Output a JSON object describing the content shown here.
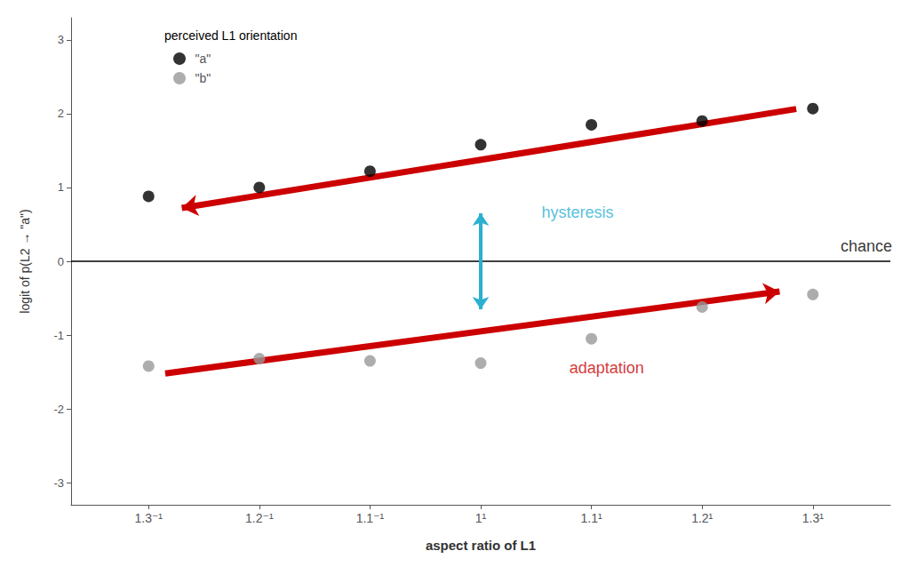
{
  "chart_data": {
    "type": "scatter",
    "title": "perceived L1 orientation",
    "xlabel": "aspect ratio of L1",
    "ylabel": "logit of p(L2 → \"a\")",
    "xlim": [
      -3.7,
      3.7
    ],
    "xticks": [
      {
        "value": -3,
        "label": "1.3⁻¹"
      },
      {
        "value": -2,
        "label": "1.2⁻¹"
      },
      {
        "value": -1,
        "label": "1.1⁻¹"
      },
      {
        "value": 0,
        "label": "1¹"
      },
      {
        "value": 1,
        "label": "1.1¹"
      },
      {
        "value": 2,
        "label": "1.2¹"
      },
      {
        "value": 3,
        "label": "1.3¹"
      }
    ],
    "ylim": [
      -3.3,
      3.3
    ],
    "yticks": [
      -3,
      -2,
      -1,
      0,
      1,
      2,
      3
    ],
    "grid": false,
    "legend": "upper left",
    "series": [
      {
        "name": "\"a\"",
        "color": "#000000",
        "x": [
          -3,
          -2,
          -1,
          0,
          1,
          2,
          3
        ],
        "values": [
          0.88,
          1.0,
          1.22,
          1.58,
          1.85,
          1.9,
          2.07
        ]
      },
      {
        "name": "\"b\"",
        "color": "#999999",
        "x": [
          -3,
          -2,
          -1,
          0,
          1,
          2,
          3
        ],
        "values": [
          -1.42,
          -1.32,
          -1.35,
          -1.38,
          -1.05,
          -0.62,
          -0.45
        ]
      }
    ],
    "annotations": [
      {
        "type": "arrow",
        "x": [
          2.85,
          -2.7
        ],
        "y": [
          2.06375,
          0.7225
        ],
        "color": "#cc0000"
      },
      {
        "type": "arrow",
        "x": [
          -2.85,
          2.7
        ],
        "y": [
          -1.52,
          -0.41
        ],
        "color": "#cc0000"
      },
      {
        "type": "double_arrow",
        "x": [
          0.0,
          0.0
        ],
        "y": [
          0.65,
          -0.65
        ],
        "color": "#2ab0d0"
      },
      {
        "type": "hline",
        "y": 0,
        "color": "#000000"
      },
      {
        "type": "text",
        "text": "chance",
        "x": 3.25,
        "y": 0.1,
        "color": "#000000"
      },
      {
        "type": "text",
        "text": "hysteresis",
        "x": 0.55,
        "y": 0.55,
        "color": "#2ab0d0"
      },
      {
        "type": "text",
        "text": "adaptation",
        "x": 0.8,
        "y": -1.55,
        "color": "#cc0000"
      }
    ]
  }
}
